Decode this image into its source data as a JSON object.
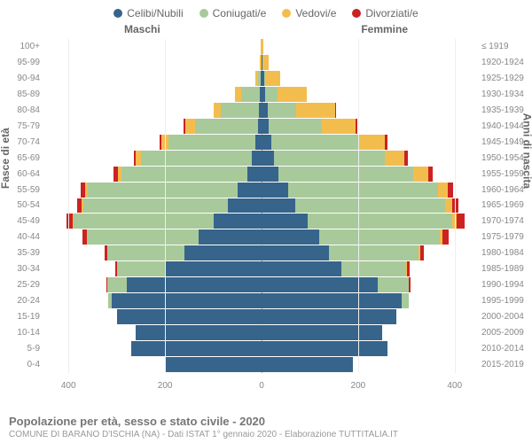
{
  "legend": [
    {
      "label": "Celibi/Nubili",
      "color": "#36648b"
    },
    {
      "label": "Coniugati/e",
      "color": "#a8c99a"
    },
    {
      "label": "Vedovi/e",
      "color": "#f3bd4e"
    },
    {
      "label": "Divorziati/e",
      "color": "#cc2222"
    }
  ],
  "columns": {
    "male": "Maschi",
    "female": "Femmine"
  },
  "axis": {
    "left_title": "Fasce di età",
    "right_title": "Anni di nascita"
  },
  "xaxis": {
    "max": 450,
    "ticks": [
      400,
      200,
      0,
      200,
      400
    ]
  },
  "footer": {
    "title": "Popolazione per età, sesso e stato civile - 2020",
    "sub": "COMUNE DI BARANO D'ISCHIA (NA) - Dati ISTAT 1° gennaio 2020 - Elaborazione TUTTITALIA.IT"
  },
  "colors": {
    "bg": "#ffffff",
    "grid": "#eeeeee",
    "plot_bg": "#f9fbfa"
  },
  "rows": [
    {
      "age": "100+",
      "birth": "≤ 1919",
      "m": [
        0,
        0,
        1,
        0
      ],
      "f": [
        0,
        0,
        3,
        0
      ]
    },
    {
      "age": "95-99",
      "birth": "1920-1924",
      "m": [
        0,
        0,
        3,
        0
      ],
      "f": [
        2,
        0,
        12,
        0
      ]
    },
    {
      "age": "90-94",
      "birth": "1925-1929",
      "m": [
        2,
        5,
        5,
        0
      ],
      "f": [
        5,
        3,
        30,
        0
      ]
    },
    {
      "age": "85-89",
      "birth": "1930-1934",
      "m": [
        3,
        40,
        12,
        0
      ],
      "f": [
        8,
        25,
        60,
        0
      ]
    },
    {
      "age": "80-84",
      "birth": "1935-1939",
      "m": [
        5,
        80,
        15,
        0
      ],
      "f": [
        12,
        60,
        80,
        2
      ]
    },
    {
      "age": "75-79",
      "birth": "1940-1944",
      "m": [
        8,
        130,
        20,
        3
      ],
      "f": [
        15,
        110,
        70,
        3
      ]
    },
    {
      "age": "70-74",
      "birth": "1945-1949",
      "m": [
        12,
        180,
        15,
        5
      ],
      "f": [
        20,
        180,
        55,
        5
      ]
    },
    {
      "age": "65-69",
      "birth": "1950-1954",
      "m": [
        20,
        230,
        10,
        5
      ],
      "f": [
        25,
        230,
        40,
        8
      ]
    },
    {
      "age": "60-64",
      "birth": "1955-1959",
      "m": [
        30,
        260,
        8,
        8
      ],
      "f": [
        35,
        280,
        30,
        10
      ]
    },
    {
      "age": "55-59",
      "birth": "1960-1964",
      "m": [
        50,
        310,
        5,
        10
      ],
      "f": [
        55,
        310,
        20,
        12
      ]
    },
    {
      "age": "50-54",
      "birth": "1965-1969",
      "m": [
        70,
        300,
        3,
        10
      ],
      "f": [
        70,
        310,
        15,
        12
      ]
    },
    {
      "age": "45-49",
      "birth": "1970-1974",
      "m": [
        100,
        290,
        2,
        12
      ],
      "f": [
        95,
        300,
        10,
        15
      ]
    },
    {
      "age": "40-44",
      "birth": "1975-1979",
      "m": [
        130,
        230,
        2,
        10
      ],
      "f": [
        120,
        250,
        5,
        12
      ]
    },
    {
      "age": "35-39",
      "birth": "1980-1984",
      "m": [
        160,
        160,
        0,
        5
      ],
      "f": [
        140,
        185,
        3,
        8
      ]
    },
    {
      "age": "30-34",
      "birth": "1985-1989",
      "m": [
        200,
        100,
        0,
        3
      ],
      "f": [
        165,
        135,
        2,
        5
      ]
    },
    {
      "age": "25-29",
      "birth": "1990-1994",
      "m": [
        280,
        40,
        0,
        2
      ],
      "f": [
        240,
        65,
        0,
        3
      ]
    },
    {
      "age": "20-24",
      "birth": "1995-1999",
      "m": [
        310,
        8,
        0,
        0
      ],
      "f": [
        290,
        15,
        0,
        0
      ]
    },
    {
      "age": "15-19",
      "birth": "2000-2004",
      "m": [
        300,
        0,
        0,
        0
      ],
      "f": [
        280,
        0,
        0,
        0
      ]
    },
    {
      "age": "10-14",
      "birth": "2005-2009",
      "m": [
        260,
        0,
        0,
        0
      ],
      "f": [
        250,
        0,
        0,
        0
      ]
    },
    {
      "age": "5-9",
      "birth": "2010-2014",
      "m": [
        270,
        0,
        0,
        0
      ],
      "f": [
        260,
        0,
        0,
        0
      ]
    },
    {
      "age": "0-4",
      "birth": "2015-2019",
      "m": [
        200,
        0,
        0,
        0
      ],
      "f": [
        190,
        0,
        0,
        0
      ]
    }
  ]
}
